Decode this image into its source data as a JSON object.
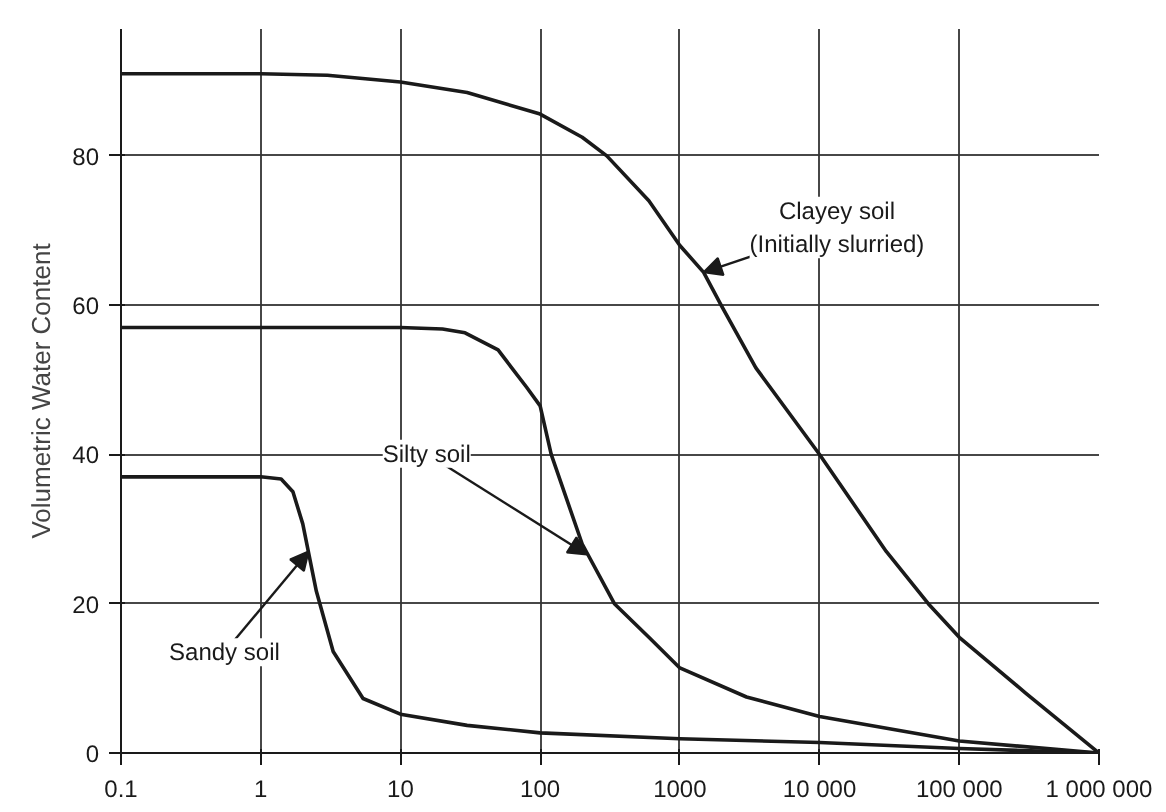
{
  "chart_data": {
    "type": "line",
    "ylabel": "Volumetric Water Content",
    "log": "x",
    "grid": true,
    "marker": "none",
    "line_style": "solid",
    "xlim": [
      0.1,
      1000000
    ],
    "xticks": [
      {
        "value": 0.1,
        "label": "0.1"
      },
      {
        "value": 1,
        "label": "1"
      },
      {
        "value": 10,
        "label": "10"
      },
      {
        "value": 100,
        "label": "100"
      },
      {
        "value": 1000,
        "label": "1000"
      },
      {
        "value": 10000,
        "label": "10 000"
      },
      {
        "value": 100000,
        "label": "100 000"
      },
      {
        "value": 1000000,
        "label": "1 000 000"
      }
    ],
    "ylim": [
      0,
      97
    ],
    "yticks": [
      0,
      20,
      40,
      60,
      80
    ],
    "series": [
      {
        "color": "#1a1a1a",
        "x": [
          0.1,
          1,
          3,
          10,
          30,
          100,
          200,
          300,
          600,
          1000,
          1480,
          2000,
          3500,
          10000,
          30000,
          60000,
          100000,
          300000,
          1000000
        ],
        "values": [
          91,
          91,
          90.8,
          89.9,
          88.5,
          85.6,
          82.5,
          80,
          74,
          68,
          64.4,
          59.8,
          51.6,
          40,
          27,
          20,
          15.5,
          8,
          0
        ]
      },
      {
        "color": "#1a1a1a",
        "x": [
          0.1,
          1,
          10,
          20,
          29,
          50,
          80,
          100,
          120,
          200,
          340,
          600,
          1000,
          3000,
          10000,
          100000,
          1000000
        ],
        "values": [
          57,
          57,
          57,
          56.8,
          56.3,
          54,
          49,
          46.5,
          40,
          28,
          20,
          15.5,
          11.4,
          7.5,
          4.9,
          1.6,
          0
        ]
      },
      {
        "color": "#1a1a1a",
        "x": [
          0.1,
          1,
          1.4,
          1.7,
          2,
          2.5,
          3.3,
          5.4,
          10,
          30,
          100,
          1000,
          10000,
          100000,
          1000000
        ],
        "values": [
          37,
          37,
          36.7,
          35,
          30.7,
          21.7,
          13.6,
          7.3,
          5.2,
          3.7,
          2.7,
          1.9,
          1.4,
          0.6,
          0
        ]
      }
    ],
    "annotations": [
      {
        "text": "Clayey soil\n(Initially slurried)",
        "x": 1480,
        "y": 64.4
      },
      {
        "text": "Silty soil",
        "x": 216,
        "y": 26.6
      },
      {
        "text": "Sandy soil",
        "x": 2.2,
        "y": 27
      }
    ]
  }
}
